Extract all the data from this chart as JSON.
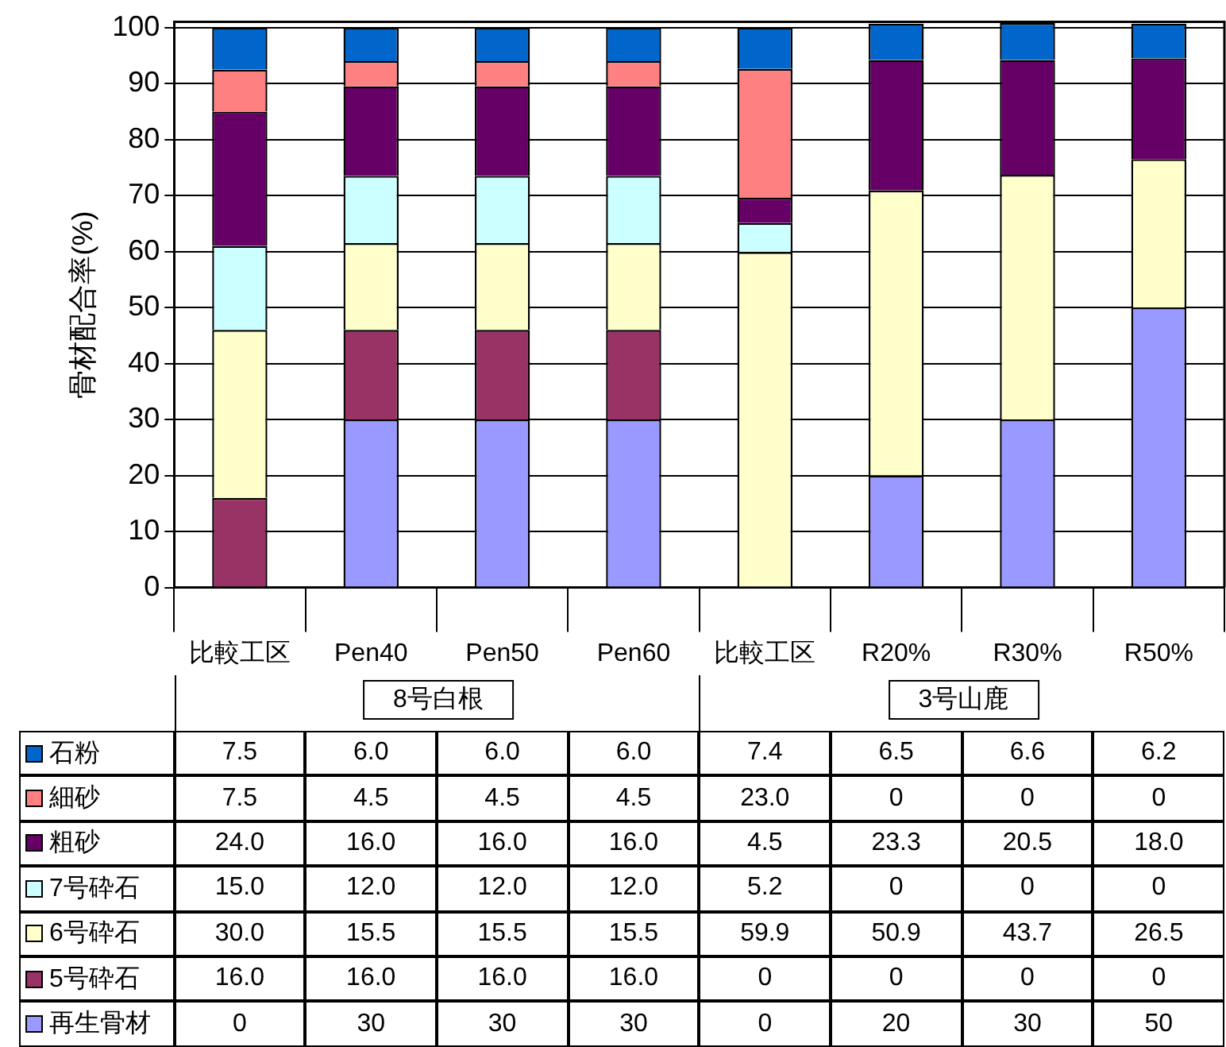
{
  "chart_data": {
    "type": "bar",
    "stacked": true,
    "ylabel": "骨材配合率(%)",
    "categories": [
      "比較工区",
      "Pen40",
      "Pen50",
      "Pen60",
      "比較工区",
      "R20%",
      "R30%",
      "R50%"
    ],
    "series": [
      {
        "name": "再生骨材",
        "color": "#9999ff",
        "values": [
          0,
          30,
          30,
          30,
          0,
          20,
          30,
          50
        ],
        "value_labels": [
          "0",
          "30",
          "30",
          "30",
          "0",
          "20",
          "30",
          "50"
        ]
      },
      {
        "name": "5号砕石",
        "color": "#993366",
        "values": [
          16,
          16,
          16,
          16,
          0,
          0,
          0,
          0
        ],
        "value_labels": [
          "16.0",
          "16.0",
          "16.0",
          "16.0",
          "0",
          "0",
          "0",
          "0"
        ]
      },
      {
        "name": "6号砕石",
        "color": "#ffffcc",
        "values": [
          30,
          15.5,
          15.5,
          15.5,
          59.9,
          50.9,
          43.7,
          26.5
        ],
        "value_labels": [
          "30.0",
          "15.5",
          "15.5",
          "15.5",
          "59.9",
          "50.9",
          "43.7",
          "26.5"
        ]
      },
      {
        "name": "7号砕石",
        "color": "#ccffff",
        "values": [
          15,
          12,
          12,
          12,
          5.2,
          0,
          0,
          0
        ],
        "value_labels": [
          "15.0",
          "12.0",
          "12.0",
          "12.0",
          "5.2",
          "0",
          "0",
          "0"
        ]
      },
      {
        "name": "粗砂",
        "color": "#660066",
        "values": [
          24,
          16,
          16,
          16,
          4.5,
          23.3,
          20.5,
          18
        ],
        "value_labels": [
          "24.0",
          "16.0",
          "16.0",
          "16.0",
          "4.5",
          "23.3",
          "20.5",
          "18.0"
        ]
      },
      {
        "name": "細砂",
        "color": "#ff8080",
        "values": [
          7.5,
          4.5,
          4.5,
          4.5,
          23,
          0,
          0,
          0
        ],
        "value_labels": [
          "7.5",
          "4.5",
          "4.5",
          "4.5",
          "23.0",
          "0",
          "0",
          "0"
        ]
      },
      {
        "name": "石粉",
        "color": "#0066cc",
        "values": [
          7.5,
          6,
          6,
          6,
          7.4,
          6.5,
          6.6,
          6.2
        ],
        "value_labels": [
          "7.5",
          "6.0",
          "6.0",
          "6.0",
          "7.4",
          "6.5",
          "6.6",
          "6.2"
        ]
      }
    ],
    "ylim": [
      0,
      101
    ],
    "yticks": [
      0,
      10,
      20,
      30,
      40,
      50,
      60,
      70,
      80,
      90,
      100
    ],
    "grid": "y",
    "legend": "bottom",
    "annotations": [
      "8号白根",
      "3号山鹿"
    ]
  }
}
